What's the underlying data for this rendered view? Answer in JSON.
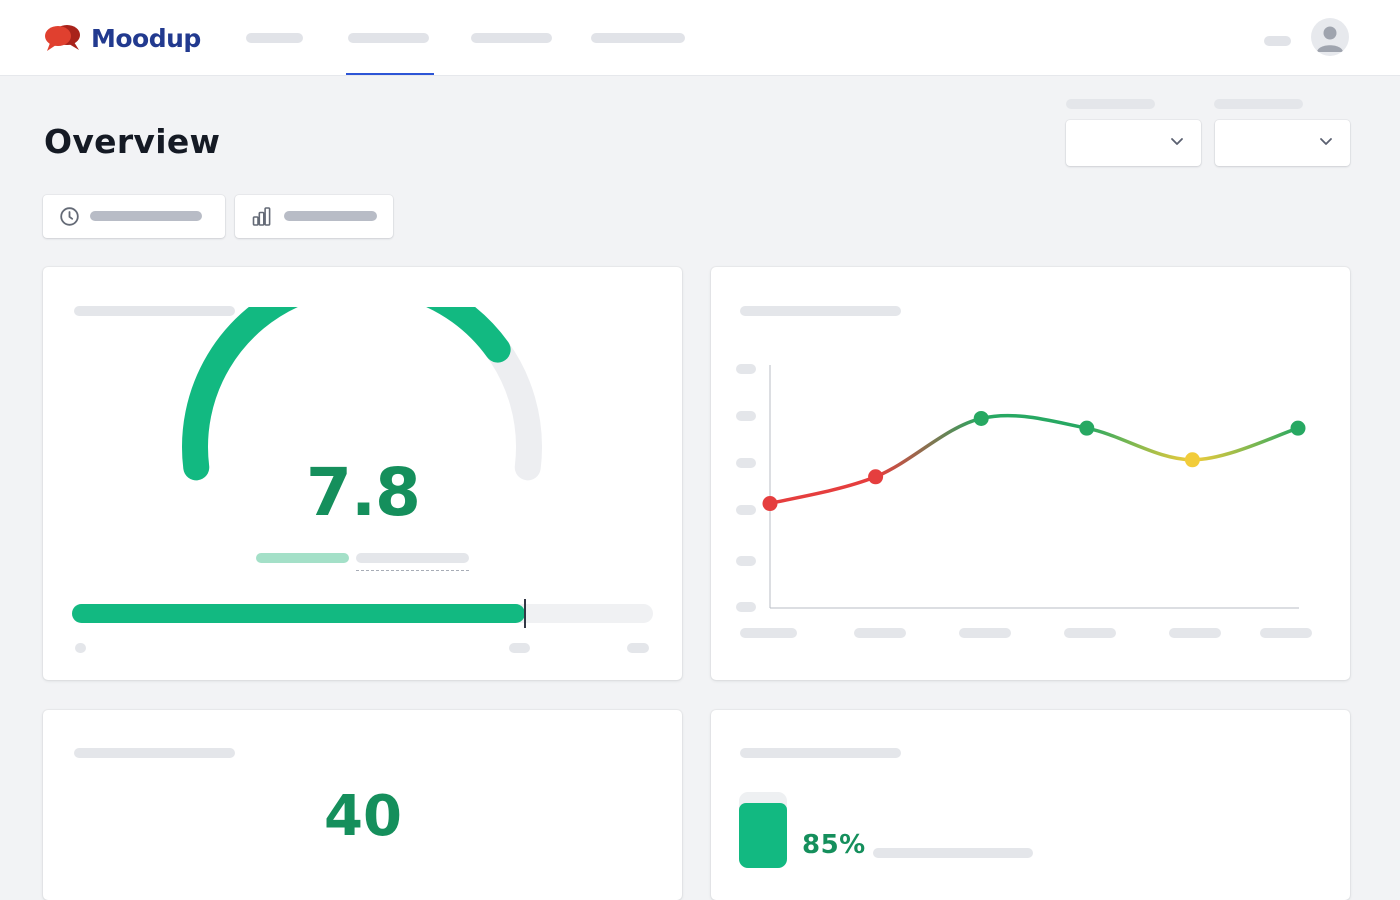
{
  "app": {
    "name": "Moodup",
    "brand_color": "#223a8f",
    "logo_color": "#d83a2c"
  },
  "nav": {
    "active_index": 1,
    "active_color": "#2d55d6",
    "tabs": [
      "",
      "",
      "",
      ""
    ]
  },
  "header": {
    "title": "Overview",
    "selects": [
      "",
      ""
    ],
    "filters": [
      {
        "icon": "clock-icon",
        "label": ""
      },
      {
        "icon": "bar-chart-icon",
        "label": ""
      }
    ]
  },
  "score_card": {
    "value": "7.8",
    "gauge_fraction": 0.78,
    "progress_fraction": 0.78,
    "accent": "#12b981"
  },
  "trend_card": {
    "chart_data": {
      "type": "line",
      "x": [
        "",
        "",
        "",
        "",
        "",
        ""
      ],
      "series": [
        {
          "values": [
            4.3,
            5.4,
            7.8,
            7.4,
            6.1,
            7.4
          ]
        }
      ],
      "ylim": [
        0,
        10
      ],
      "grid": false,
      "point_colors": [
        "#e53e3e",
        "#e53e3e",
        "#27a862",
        "#27a862",
        "#f2cc3a",
        "#27a862"
      ]
    }
  },
  "count_card": {
    "value": "40"
  },
  "percent_card": {
    "value": "85%",
    "fill_fraction": 0.85
  }
}
